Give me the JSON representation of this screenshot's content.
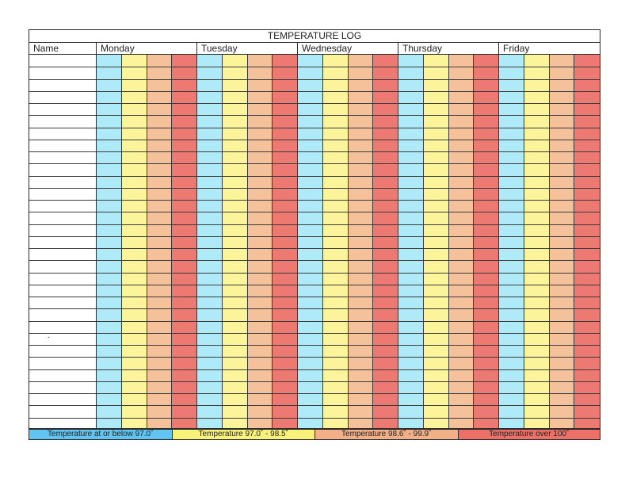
{
  "title": "TEMPERATURE LOG",
  "header": {
    "name_label": "Name",
    "days": [
      "Monday",
      "Tuesday",
      "Wednesday",
      "Thursday",
      "Friday"
    ]
  },
  "dash_mark": "-",
  "colors": {
    "blue": "#aeeaf8",
    "yellow": "#fbf49a",
    "orange": "#f5c19a",
    "red": "#ec7a72",
    "legend_blue": "#62c4f0",
    "legend_yellow": "#f9f27a",
    "legend_orange": "#f3b088",
    "legend_red": "#ec7068"
  },
  "legend": [
    {
      "label": "Temperature at or below 97.0˚",
      "color": "legend_blue"
    },
    {
      "label": "Temperature 97.0˚ - 98.5˚",
      "color": "legend_yellow"
    },
    {
      "label": "Temperature 98.6˚ - 99.9˚",
      "color": "legend_orange"
    },
    {
      "label": "Temperature over 100˚",
      "color": "legend_red"
    }
  ]
}
